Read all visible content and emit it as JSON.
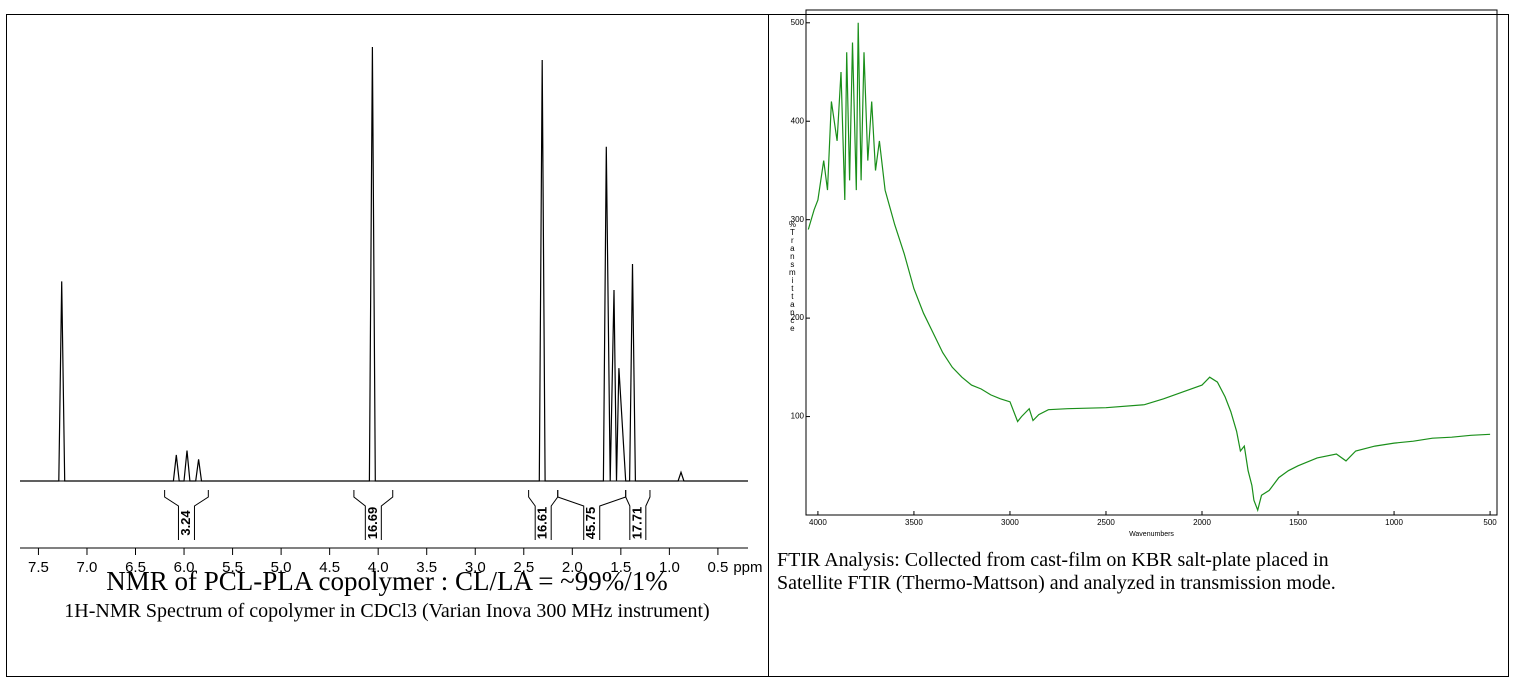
{
  "chart_data": [
    {
      "type": "line",
      "title": "NMR of PCL-PLA copolymer : CL/LA = ~99%/1%",
      "caption": "1H-NMR Spectrum of copolymer in CDCl3 (Varian Inova 300 MHz instrument)",
      "x_label": "ppm",
      "color": "#000000",
      "xlim": [
        7.69,
        0.19
      ],
      "xticks": [
        7.5,
        {
          "value": 7,
          "label": "7.0"
        },
        6.5,
        {
          "value": 6,
          "label": "6.0"
        },
        5.5,
        {
          "value": 5,
          "label": "5.0"
        },
        4.5,
        {
          "value": 4,
          "label": "4.0"
        },
        3.5,
        {
          "value": 3,
          "label": "3.0"
        },
        2.5,
        {
          "value": 2,
          "label": "2.0"
        },
        1.5,
        {
          "value": 1,
          "label": "1.0"
        },
        0.5
      ],
      "x": [
        7.69,
        7.29,
        7.26,
        7.23,
        6.11,
        6.08,
        6.05,
        6.0,
        5.97,
        5.94,
        5.88,
        5.85,
        5.82,
        4.09,
        4.06,
        4.03,
        2.34,
        2.31,
        2.28,
        1.68,
        1.65,
        1.61,
        1.57,
        1.545,
        1.52,
        1.45,
        1.41,
        1.38,
        1.35,
        0.91,
        0.88,
        0.85,
        0.19
      ],
      "values": [
        0,
        0,
        46,
        0,
        0,
        6,
        0,
        0,
        7,
        0,
        0,
        5,
        0,
        0,
        100,
        0,
        0,
        97,
        0,
        0,
        77,
        0,
        44,
        0,
        26,
        0,
        0,
        50,
        0,
        0,
        2,
        0,
        0
      ],
      "integrals": [
        {
          "from": 6.2,
          "to": 5.75,
          "value": 3.24
        },
        {
          "from": 4.25,
          "to": 3.85,
          "value": 16.69
        },
        {
          "from": 2.45,
          "to": 2.15,
          "value": 16.61
        },
        {
          "from": 2.15,
          "to": 1.45,
          "value": 45.75
        },
        {
          "from": 1.45,
          "to": 1.2,
          "value": 17.71
        }
      ]
    },
    {
      "type": "line",
      "caption": "FTIR Analysis: Collected from cast-film on KBR salt-plate placed in Satellite FTIR (Thermo-Mattson) and analyzed in transmission mode.",
      "x_label": "Wavenumbers",
      "y_label": "%Transmittance",
      "color": "#1a8f1a",
      "xlim": [
        4062,
        464
      ],
      "ylim": [
        0,
        513
      ],
      "xticks": [
        4000,
        3500,
        3000,
        2500,
        2000,
        1500,
        1000,
        500
      ],
      "yticks": [
        100,
        200,
        300,
        400,
        500
      ],
      "x": [
        4050,
        4020,
        4000,
        3970,
        3950,
        3930,
        3900,
        3880,
        3860,
        3850,
        3835,
        3820,
        3800,
        3790,
        3775,
        3760,
        3740,
        3720,
        3700,
        3680,
        3650,
        3600,
        3550,
        3500,
        3450,
        3400,
        3350,
        3300,
        3250,
        3200,
        3150,
        3100,
        3050,
        3000,
        2960,
        2940,
        2900,
        2880,
        2850,
        2800,
        2700,
        2500,
        2300,
        2200,
        2100,
        2000,
        1960,
        1920,
        1880,
        1850,
        1820,
        1800,
        1780,
        1760,
        1740,
        1730,
        1710,
        1690,
        1650,
        1600,
        1550,
        1500,
        1400,
        1300,
        1250,
        1200,
        1100,
        1000,
        900,
        800,
        700,
        600,
        500
      ],
      "values": [
        290,
        310,
        320,
        360,
        330,
        420,
        380,
        450,
        320,
        470,
        340,
        480,
        330,
        500,
        340,
        470,
        360,
        420,
        350,
        380,
        330,
        295,
        265,
        230,
        205,
        185,
        165,
        150,
        140,
        132,
        128,
        122,
        118,
        115,
        95,
        100,
        108,
        96,
        102,
        107,
        108,
        109,
        112,
        118,
        125,
        132,
        140,
        135,
        120,
        105,
        85,
        65,
        70,
        45,
        30,
        15,
        5,
        20,
        25,
        38,
        45,
        50,
        58,
        62,
        55,
        65,
        70,
        73,
        75,
        78,
        79,
        81,
        82
      ]
    }
  ]
}
